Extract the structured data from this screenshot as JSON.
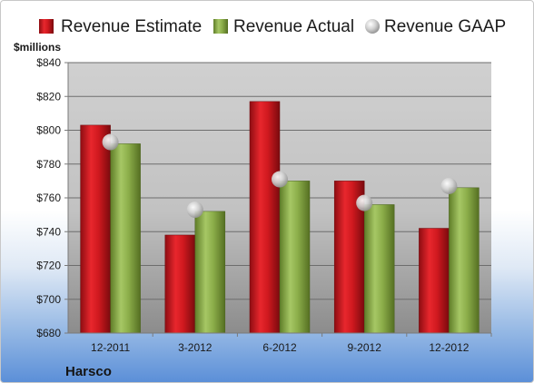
{
  "company": "Harsco",
  "unit_label": "$millions",
  "colors": {
    "estimate": "#d0191f",
    "actual": "#8cae4a",
    "gaap": "#c8c8c8"
  },
  "legend": {
    "estimate": "Revenue Estimate",
    "actual": "Revenue Actual",
    "gaap": "Revenue GAAP"
  },
  "chart_data": {
    "type": "bar",
    "categories": [
      "12-2011",
      "3-2012",
      "6-2012",
      "9-2012",
      "12-2012"
    ],
    "series": [
      {
        "name": "Revenue Estimate",
        "values": [
          803,
          738,
          817,
          770,
          742
        ]
      },
      {
        "name": "Revenue Actual",
        "values": [
          792,
          752,
          770,
          756,
          766
        ]
      },
      {
        "name": "Revenue GAAP",
        "values": [
          793,
          753,
          771,
          757,
          767
        ]
      }
    ],
    "yticks": [
      "$680",
      "$700",
      "$720",
      "$740",
      "$760",
      "$780",
      "$800",
      "$820",
      "$840"
    ],
    "ylim": [
      680,
      840
    ],
    "grid": true,
    "legend_position": "top"
  }
}
